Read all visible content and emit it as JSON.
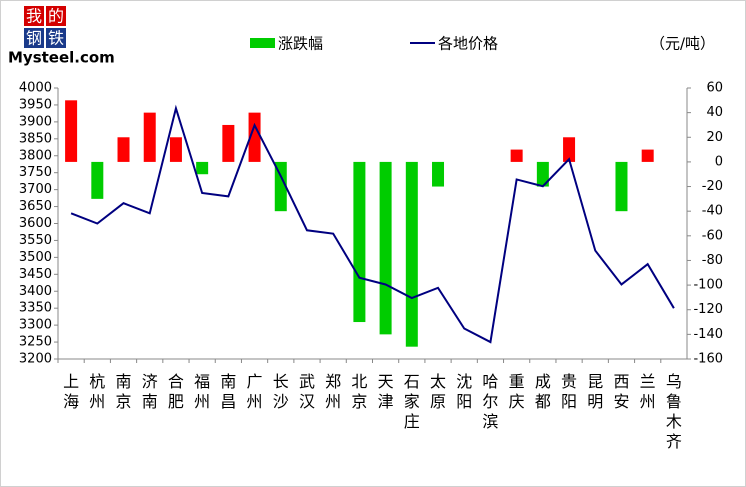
{
  "logo": {
    "chars": [
      "我",
      "的",
      "钢",
      "铁"
    ],
    "brand": "Mysteel.com"
  },
  "chart_data": {
    "type": "combo",
    "unit": "（元/吨）",
    "categories": [
      "上海",
      "杭州",
      "南京",
      "济南",
      "合肥",
      "福州",
      "南昌",
      "广州",
      "长沙",
      "武汉",
      "郑州",
      "北京",
      "天津",
      "石家庄",
      "太原",
      "沈阳",
      "哈尔滨",
      "重庆",
      "成都",
      "贵阳",
      "昆明",
      "西安",
      "兰州",
      "乌鲁木齐"
    ],
    "series": [
      {
        "name": "涨跌幅",
        "type": "bar",
        "axis": "y2",
        "color": "#00cc00",
        "up_color": "#ff0000",
        "values": [
          50,
          -30,
          20,
          40,
          20,
          -10,
          30,
          40,
          -40,
          0,
          0,
          -130,
          -140,
          -150,
          -20,
          0,
          0,
          10,
          -20,
          20,
          0,
          -40,
          10,
          0
        ]
      },
      {
        "name": "各地价格",
        "type": "line",
        "color": "#000080",
        "values": [
          3630,
          3600,
          3660,
          3630,
          3940,
          3690,
          3680,
          3890,
          3740,
          3580,
          3570,
          3440,
          3420,
          3380,
          3410,
          3290,
          3250,
          3730,
          3710,
          3790,
          3520,
          3420,
          3480,
          3350
        ]
      }
    ],
    "ylim": [
      3200,
      4000
    ],
    "yticks": [
      3200,
      3250,
      3300,
      3350,
      3400,
      3450,
      3500,
      3550,
      3600,
      3650,
      3700,
      3750,
      3800,
      3850,
      3900,
      3950,
      4000
    ],
    "y2lim": [
      -160,
      60
    ],
    "y2ticks": [
      -160,
      -140,
      -120,
      -100,
      -80,
      -60,
      -40,
      -20,
      0,
      20,
      40,
      60
    ],
    "grid": false
  }
}
